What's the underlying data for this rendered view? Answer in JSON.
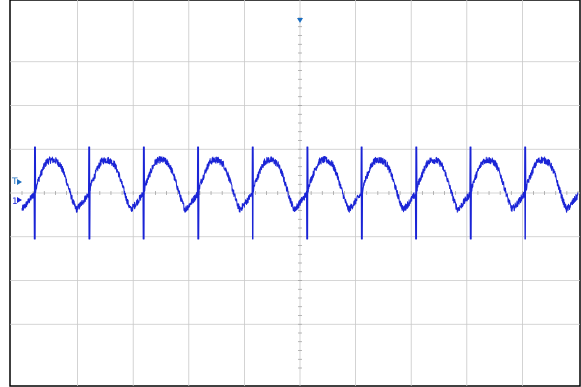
{
  "chart_data": {
    "type": "line",
    "title": "",
    "xlabel": "",
    "ylabel": "",
    "grid": true,
    "x_divisions": 10,
    "y_divisions": 8,
    "xlim": [
      0,
      10
    ],
    "ylim": [
      -4,
      4
    ],
    "period_div": 0.98,
    "first_spike_div": 0.23,
    "series": [
      {
        "name": "",
        "color": "#1a24d6",
        "profile": [
          {
            "x": 0.0,
            "y": 0.0
          },
          {
            "x": 0.04,
            "y": 0.22
          },
          {
            "x": 0.1,
            "y": 0.4
          },
          {
            "x": 0.16,
            "y": 0.58
          },
          {
            "x": 0.22,
            "y": 0.72
          },
          {
            "x": 0.3,
            "y": 0.76
          },
          {
            "x": 0.38,
            "y": 0.74
          },
          {
            "x": 0.46,
            "y": 0.66
          },
          {
            "x": 0.54,
            "y": 0.44
          },
          {
            "x": 0.62,
            "y": 0.12
          },
          {
            "x": 0.7,
            "y": -0.2
          },
          {
            "x": 0.76,
            "y": -0.38
          },
          {
            "x": 0.82,
            "y": -0.3
          },
          {
            "x": 0.88,
            "y": -0.2
          },
          {
            "x": 0.94,
            "y": -0.1
          },
          {
            "x": 1.0,
            "y": 0.0
          }
        ],
        "spike": {
          "up": 1.05,
          "down": -1.05
        }
      }
    ]
  },
  "markers": {
    "trigger": {
      "label": "T",
      "color": "#1d6fc1"
    },
    "channel": {
      "label": "1",
      "color": "#1a24d6"
    },
    "trigger_pos": {
      "color": "#1d6fc1"
    }
  }
}
